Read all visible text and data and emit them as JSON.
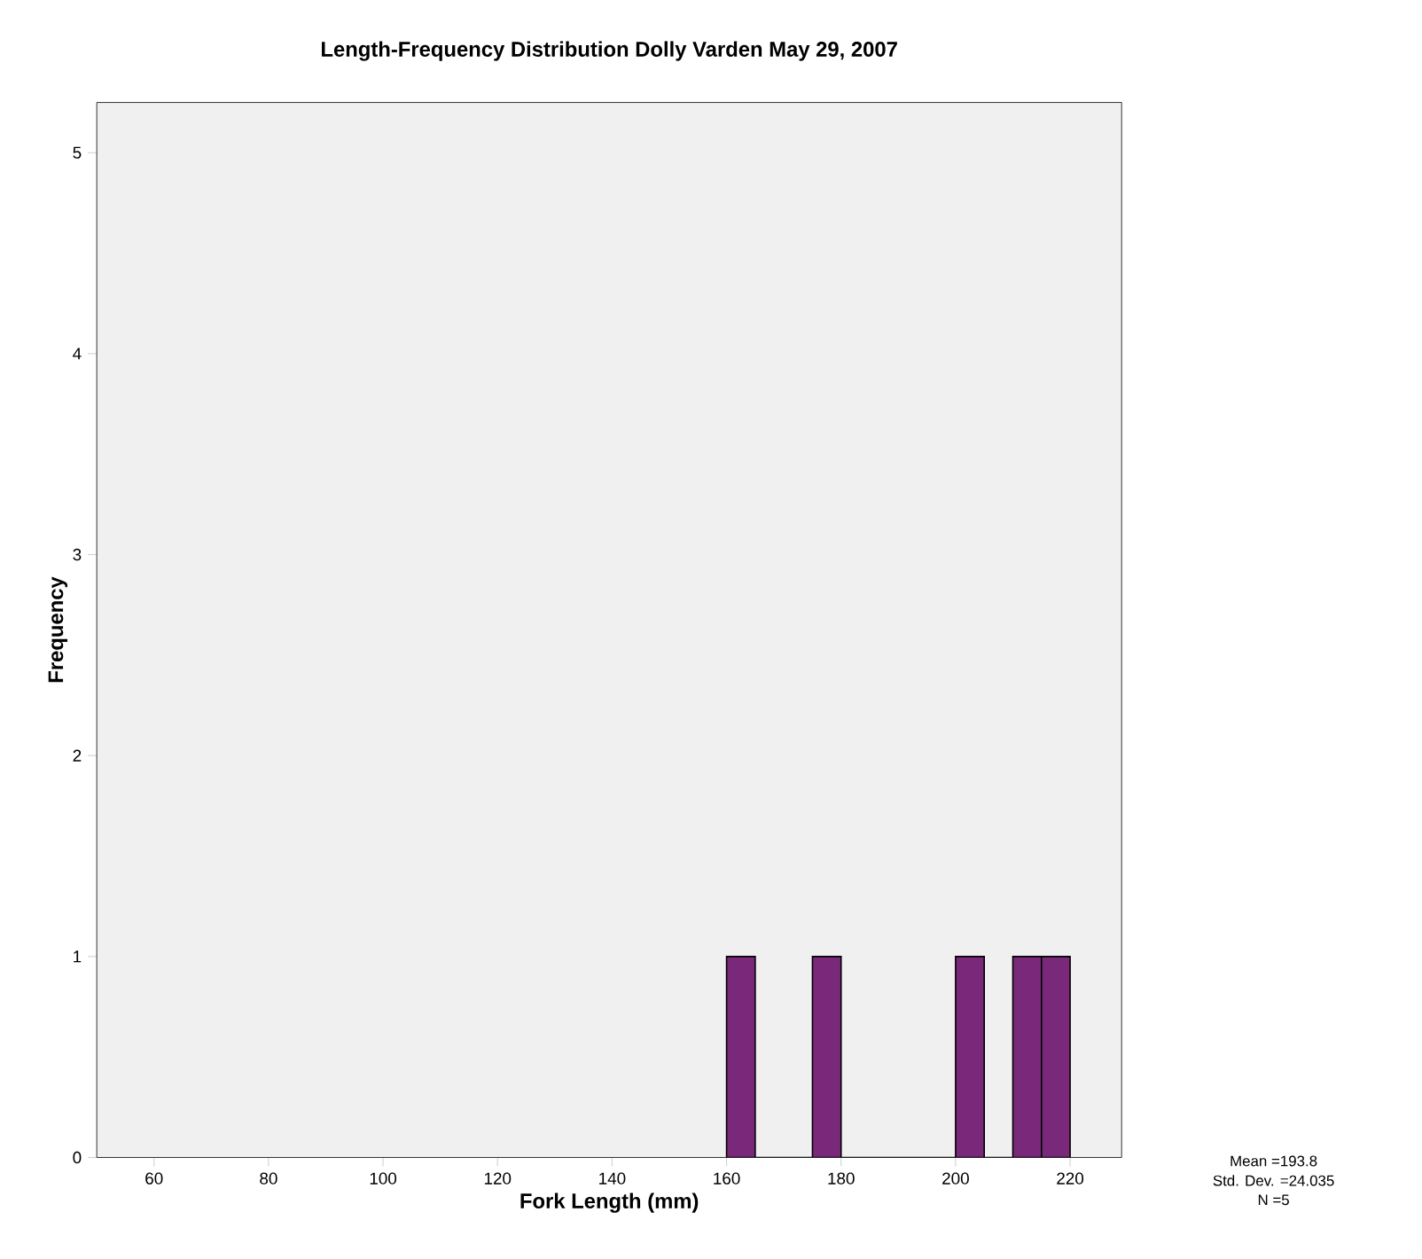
{
  "chart_data": {
    "type": "histogram",
    "title": "Length-Frequency Distribution Dolly Varden May 29, 2007",
    "xlabel": "Fork Length (mm)",
    "ylabel": "Frequency",
    "bins": [
      160,
      165,
      170,
      175,
      180,
      185,
      190,
      195,
      200,
      205,
      210,
      215,
      220
    ],
    "values": [
      1,
      0,
      0,
      1,
      0,
      0,
      0,
      0,
      1,
      0,
      1,
      1
    ],
    "color": "#7a287a",
    "xlim": [
      50,
      229
    ],
    "ylim": [
      0,
      5.25
    ],
    "xticks": [
      60,
      80,
      100,
      120,
      140,
      160,
      180,
      200,
      220
    ],
    "yticks": [
      0,
      1,
      2,
      3,
      4,
      5
    ],
    "annotations": [
      "Mean =193.8",
      "Std. Dev. =24.035",
      "N =5"
    ]
  }
}
